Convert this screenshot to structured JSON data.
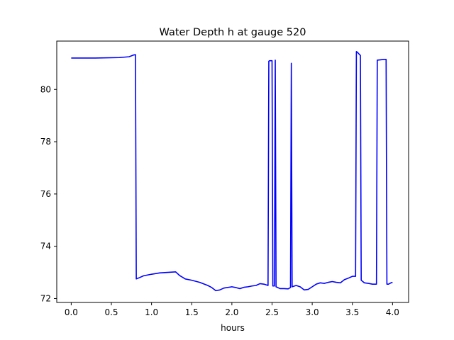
{
  "chart_data": {
    "type": "line",
    "title": "Water Depth h at gauge 520",
    "xlabel": "hours",
    "ylabel": "",
    "xlim": [
      -0.18,
      4.2
    ],
    "ylim": [
      71.85,
      81.85
    ],
    "xticks": [
      0.0,
      0.5,
      1.0,
      1.5,
      2.0,
      2.5,
      3.0,
      3.5,
      4.0
    ],
    "xtick_labels": [
      "0.0",
      "0.5",
      "1.0",
      "1.5",
      "2.0",
      "2.5",
      "3.0",
      "3.5",
      "4.0"
    ],
    "yticks": [
      72,
      74,
      76,
      78,
      80
    ],
    "ytick_labels": [
      "72",
      "74",
      "76",
      "78",
      "80"
    ],
    "grid": false,
    "legend": "none",
    "colors": {
      "series": "#0000ff",
      "axes": "#000000",
      "background": "#ffffff"
    },
    "series": [
      {
        "x": [
          0.0,
          0.3,
          0.6,
          0.72,
          0.78,
          0.8,
          0.81,
          0.85,
          0.9,
          1.0,
          1.1,
          1.2,
          1.3,
          1.35,
          1.42,
          1.5,
          1.6,
          1.7,
          1.75,
          1.8,
          1.85,
          1.9,
          2.0,
          2.05,
          2.1,
          2.15,
          2.2,
          2.25,
          2.3,
          2.35,
          2.4,
          2.45,
          2.46,
          2.47,
          2.5,
          2.51,
          2.53,
          2.54,
          2.55,
          2.6,
          2.65,
          2.7,
          2.73,
          2.74,
          2.75,
          2.8,
          2.85,
          2.9,
          2.95,
          3.0,
          3.05,
          3.1,
          3.15,
          3.2,
          3.25,
          3.3,
          3.35,
          3.4,
          3.45,
          3.5,
          3.54,
          3.55,
          3.56,
          3.6,
          3.61,
          3.65,
          3.7,
          3.75,
          3.8,
          3.81,
          3.9,
          3.92,
          3.93,
          3.95,
          3.98,
          4.0
        ],
        "values": [
          81.2,
          81.2,
          81.22,
          81.25,
          81.32,
          81.33,
          72.75,
          72.8,
          72.87,
          72.93,
          72.98,
          73.0,
          73.02,
          72.88,
          72.75,
          72.7,
          72.62,
          72.5,
          72.42,
          72.3,
          72.33,
          72.4,
          72.45,
          72.42,
          72.38,
          72.43,
          72.45,
          72.48,
          72.5,
          72.57,
          72.55,
          72.5,
          81.08,
          81.1,
          81.1,
          72.48,
          72.48,
          81.12,
          72.45,
          72.38,
          72.38,
          72.37,
          72.42,
          81.0,
          72.45,
          72.5,
          72.45,
          72.33,
          72.35,
          72.45,
          72.55,
          72.6,
          72.58,
          72.62,
          72.65,
          72.62,
          72.6,
          72.72,
          72.78,
          72.85,
          72.85,
          81.45,
          81.43,
          81.3,
          72.7,
          72.6,
          72.58,
          72.55,
          72.55,
          81.12,
          81.15,
          81.15,
          72.55,
          72.55,
          72.6,
          72.62
        ]
      }
    ]
  }
}
